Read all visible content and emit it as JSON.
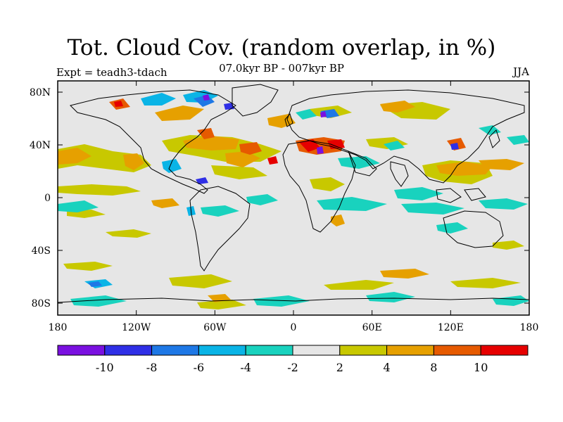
{
  "title": "Tot. Cloud Cov. (random overlap, in %)",
  "subtitle": "07.0kyr BP - 007kyr BP",
  "experiment": "Expt = teadh3-tdach",
  "season": "JJA",
  "axes": {
    "lat_ticks": [
      "80N",
      "40N",
      "0",
      "40S",
      "80S"
    ],
    "lon_ticks": [
      "180",
      "120W",
      "60W",
      "0",
      "60E",
      "120E",
      "180"
    ]
  },
  "colorbar": {
    "colors": [
      "#7a10e0",
      "#2f2fe6",
      "#1e78e6",
      "#0ab4e6",
      "#19d2be",
      "#e6e6e6",
      "#c8c800",
      "#e6a000",
      "#e65a00",
      "#e60000"
    ],
    "labels": [
      "-10",
      "-8",
      "-6",
      "-4",
      "-2",
      "2",
      "4",
      "8",
      "10"
    ]
  },
  "colors": {
    "land_outline": "#000000",
    "background": "#e6e6e6"
  }
}
